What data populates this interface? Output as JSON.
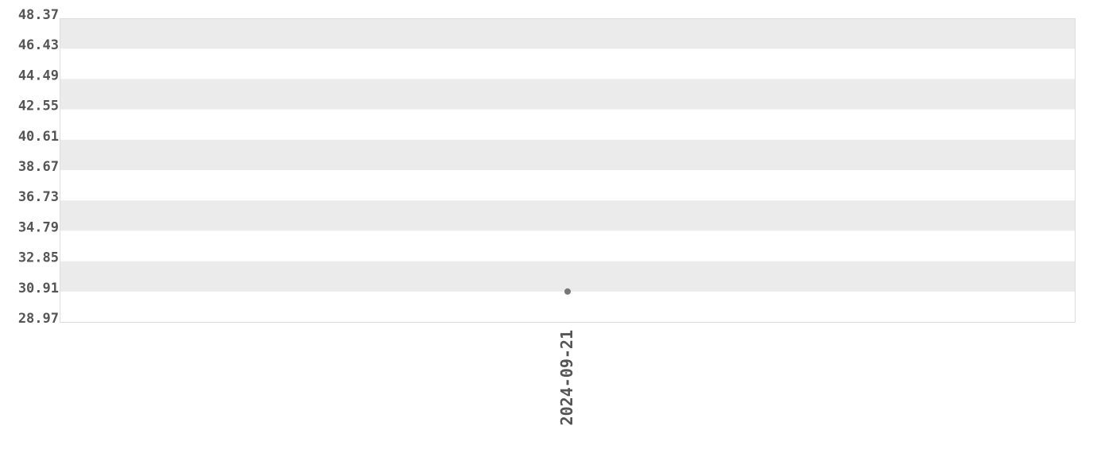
{
  "chart_data": {
    "type": "scatter",
    "title": "",
    "xlabel": "",
    "ylabel": "",
    "x_tick_labels": [
      "2024-09-21"
    ],
    "y_tick_labels": [
      "48.37",
      "46.43",
      "44.49",
      "42.55",
      "40.61",
      "38.67",
      "36.73",
      "34.79",
      "32.85",
      "30.91",
      "28.97"
    ],
    "ylim": [
      28.97,
      48.37
    ],
    "grid": "alternating horizontal bands",
    "points": [
      {
        "x": "2024-09-21",
        "y": 30.91
      }
    ],
    "colors": {
      "point": "#777777",
      "band": "#ebebeb",
      "text": "#555555",
      "border": "#dddddd"
    }
  }
}
